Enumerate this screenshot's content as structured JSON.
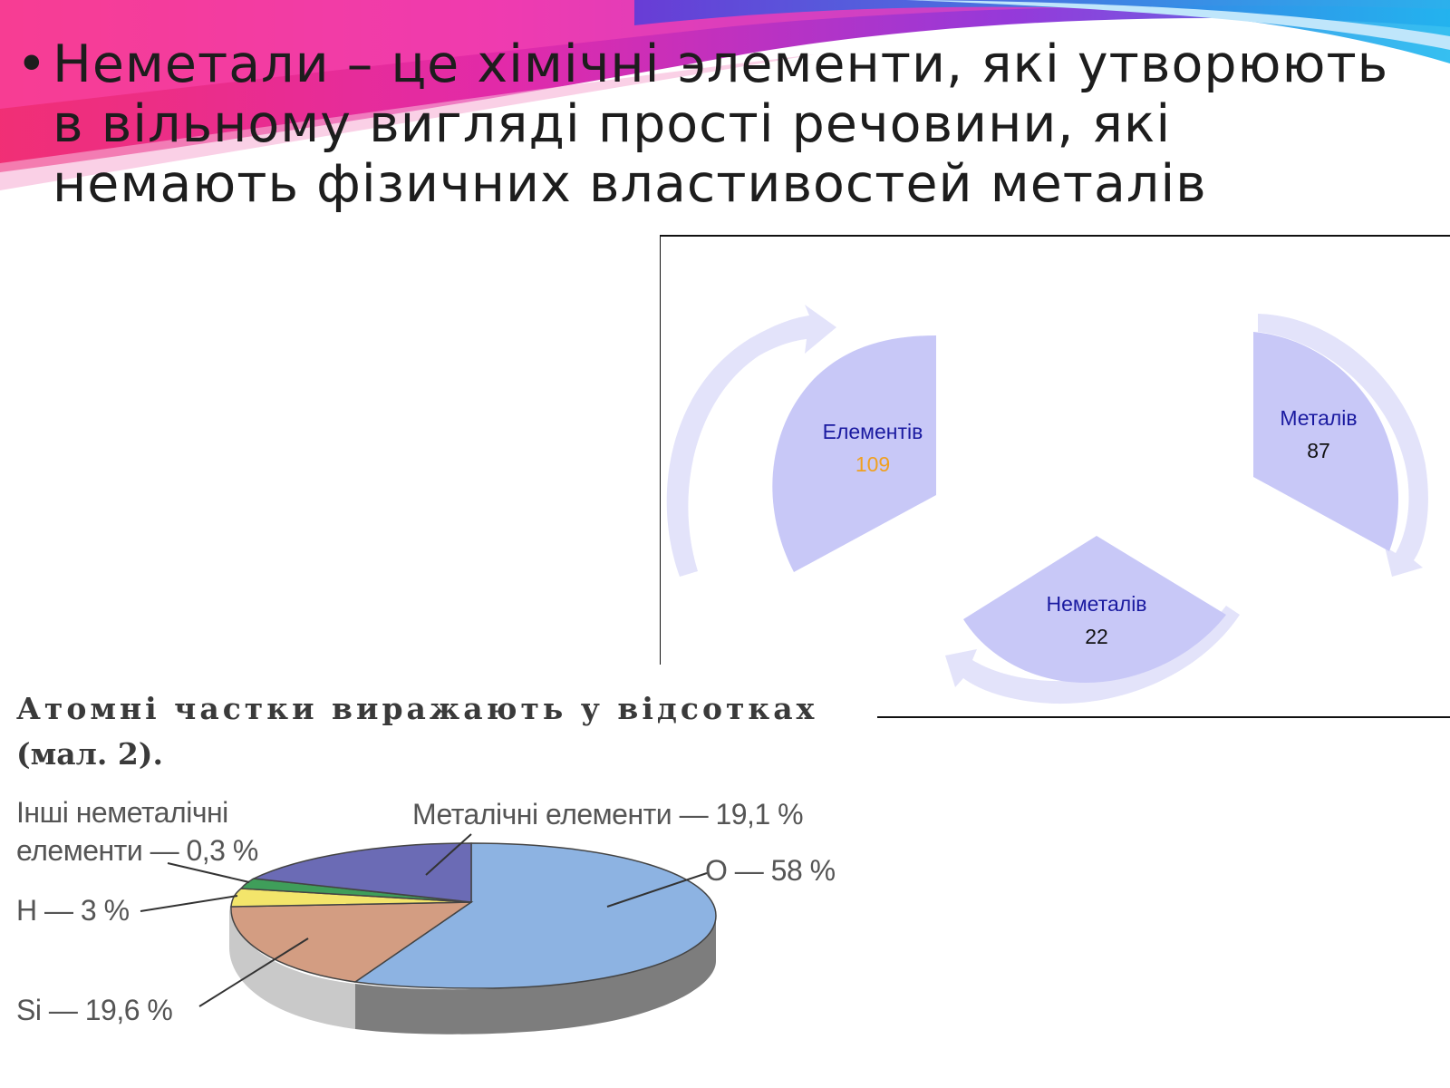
{
  "slide": {
    "bullet_symbol": "•",
    "bullet_text": "Неметали – це хімічні элементи, які утворюють в вільному вигляді прості речовини, які немають фізичних властивостей металів"
  },
  "cycle_diagram": {
    "fill_color": "#c8c8f7",
    "arrow_color": "#e3e3fa",
    "nodes": [
      {
        "name": "Елементів",
        "value": "109"
      },
      {
        "name": "Металів",
        "value": "87"
      },
      {
        "name": "Неметалів",
        "value": "22"
      }
    ]
  },
  "caption": {
    "line1": "Атомні частки виражають у відсотках",
    "line2": "(мал. 2)."
  },
  "pie_chart": {
    "colors": {
      "O": "#8db3e2",
      "Si": "#d39d82",
      "H": "#f3e56b",
      "other": "#3f9e5a",
      "metals": "#6b6bb5",
      "side": "#8a8a8a"
    },
    "labels": {
      "metals": "Металічні елементи — 19,1 %",
      "O": "O — 58 %",
      "other_line1": "Інші неметалічні",
      "other_line2": "елементи — 0,3 %",
      "H": "H — 3 %",
      "Si": "Si — 19,6 %"
    }
  }
}
